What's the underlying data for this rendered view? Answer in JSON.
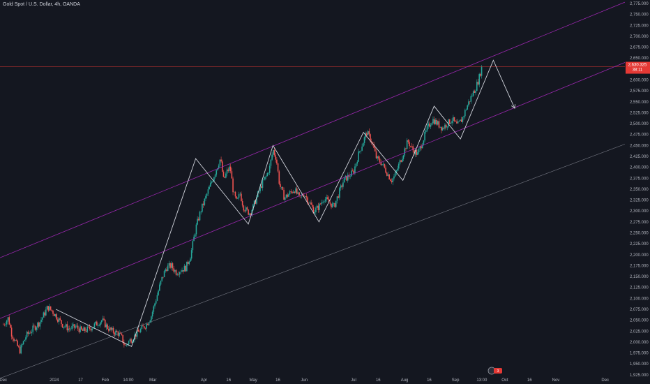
{
  "header": {
    "symbol_title": "Gold Spot / U.S. Dollar, 4h, OANDA"
  },
  "colors": {
    "background": "#141720",
    "up_candle": "#26a69a",
    "down_candle": "#ef5350",
    "channel_line": "#9c27b0",
    "lower_line": "#787b86",
    "zigzag": "#d1d4dc",
    "price_line": "#e53935",
    "price_tag": "#e53935"
  },
  "price_tag": {
    "price": "2,630.325",
    "countdown": "38:11",
    "value": 2630.3
  },
  "events_badge": {
    "count": "3"
  },
  "chart_data": {
    "type": "candlestick",
    "title": "Gold Spot / U.S. Dollar, 4h, OANDA",
    "xlabel": "",
    "ylabel": "",
    "ylim": [
      1912,
      2783
    ],
    "y_ticks": [
      "1,925.000",
      "1,950.000",
      "1,975.000",
      "2,000.000",
      "2,025.000",
      "2,050.000",
      "2,075.000",
      "2,100.000",
      "2,125.000",
      "2,150.000",
      "2,175.000",
      "2,200.000",
      "2,225.000",
      "2,250.000",
      "2,275.000",
      "2,300.000",
      "2,325.000",
      "2,350.000",
      "2,375.000",
      "2,400.000",
      "2,425.000",
      "2,450.000",
      "2,475.000",
      "2,500.000",
      "2,525.000",
      "2,550.000",
      "2,575.000",
      "2,600.000",
      "2,625.000",
      "2,650.000",
      "2,675.000",
      "2,700.000",
      "2,725.000",
      "2,750.000",
      "2,775.000"
    ],
    "y_tick_values": [
      1925,
      1950,
      1975,
      2000,
      2025,
      2050,
      2075,
      2100,
      2125,
      2150,
      2175,
      2200,
      2225,
      2250,
      2275,
      2300,
      2325,
      2350,
      2375,
      2400,
      2425,
      2450,
      2475,
      2500,
      2525,
      2550,
      2575,
      2600,
      2625,
      2650,
      2675,
      2700,
      2725,
      2750,
      2775
    ],
    "x_range_days": [
      -2,
      378
    ],
    "x_ticks": [
      {
        "label": "Dec",
        "day": 0
      },
      {
        "label": "2024",
        "day": 31
      },
      {
        "label": "17",
        "day": 47
      },
      {
        "label": "Feb",
        "day": 62
      },
      {
        "label": "14:00",
        "day": 76
      },
      {
        "label": "Mar",
        "day": 91
      },
      {
        "label": "Apr",
        "day": 122
      },
      {
        "label": "16",
        "day": 137
      },
      {
        "label": "May",
        "day": 152
      },
      {
        "label": "16",
        "day": 167
      },
      {
        "label": "Jun",
        "day": 183
      },
      {
        "label": "Jul",
        "day": 213
      },
      {
        "label": "16",
        "day": 228
      },
      {
        "label": "Aug",
        "day": 244
      },
      {
        "label": "16",
        "day": 259
      },
      {
        "label": "Sep",
        "day": 275
      },
      {
        "label": "13:00",
        "day": 291
      },
      {
        "label": "Oct",
        "day": 305
      },
      {
        "label": "16",
        "day": 320
      },
      {
        "label": "Nov",
        "day": 336
      },
      {
        "label": "Dec",
        "day": 366
      }
    ],
    "price_path": [
      [
        0,
        2040
      ],
      [
        3,
        2055
      ],
      [
        5,
        2020
      ],
      [
        8,
        1995
      ],
      [
        10,
        1980
      ],
      [
        14,
        2015
      ],
      [
        18,
        2030
      ],
      [
        22,
        2045
      ],
      [
        25,
        2065
      ],
      [
        27,
        2080
      ],
      [
        30,
        2070
      ],
      [
        33,
        2055
      ],
      [
        36,
        2040
      ],
      [
        40,
        2030
      ],
      [
        44,
        2035
      ],
      [
        48,
        2025
      ],
      [
        52,
        2030
      ],
      [
        56,
        2040
      ],
      [
        60,
        2050
      ],
      [
        63,
        2035
      ],
      [
        66,
        2025
      ],
      [
        70,
        2020
      ],
      [
        72,
        2010
      ],
      [
        74,
        1990
      ],
      [
        76,
        2000
      ],
      [
        80,
        2015
      ],
      [
        84,
        2030
      ],
      [
        87,
        2040
      ],
      [
        90,
        2060
      ],
      [
        93,
        2100
      ],
      [
        96,
        2140
      ],
      [
        99,
        2170
      ],
      [
        102,
        2175
      ],
      [
        105,
        2160
      ],
      [
        108,
        2165
      ],
      [
        111,
        2170
      ],
      [
        114,
        2200
      ],
      [
        117,
        2260
      ],
      [
        120,
        2300
      ],
      [
        123,
        2330
      ],
      [
        126,
        2360
      ],
      [
        128,
        2380
      ],
      [
        130,
        2400
      ],
      [
        132,
        2420
      ],
      [
        134,
        2370
      ],
      [
        136,
        2390
      ],
      [
        138,
        2400
      ],
      [
        140,
        2340
      ],
      [
        142,
        2320
      ],
      [
        144,
        2340
      ],
      [
        146,
        2310
      ],
      [
        148,
        2300
      ],
      [
        150,
        2295
      ],
      [
        152,
        2310
      ],
      [
        154,
        2330
      ],
      [
        157,
        2360
      ],
      [
        160,
        2380
      ],
      [
        162,
        2400
      ],
      [
        164,
        2440
      ],
      [
        166,
        2420
      ],
      [
        168,
        2360
      ],
      [
        171,
        2330
      ],
      [
        174,
        2340
      ],
      [
        177,
        2350
      ],
      [
        180,
        2330
      ],
      [
        183,
        2340
      ],
      [
        186,
        2320
      ],
      [
        189,
        2300
      ],
      [
        192,
        2310
      ],
      [
        195,
        2330
      ],
      [
        198,
        2320
      ],
      [
        201,
        2310
      ],
      [
        204,
        2340
      ],
      [
        207,
        2370
      ],
      [
        210,
        2380
      ],
      [
        213,
        2390
      ],
      [
        216,
        2430
      ],
      [
        219,
        2460
      ],
      [
        221,
        2480
      ],
      [
        224,
        2460
      ],
      [
        227,
        2420
      ],
      [
        230,
        2410
      ],
      [
        233,
        2390
      ],
      [
        236,
        2370
      ],
      [
        238,
        2380
      ],
      [
        241,
        2410
      ],
      [
        244,
        2440
      ],
      [
        246,
        2460
      ],
      [
        249,
        2440
      ],
      [
        252,
        2430
      ],
      [
        255,
        2460
      ],
      [
        258,
        2490
      ],
      [
        261,
        2510
      ],
      [
        264,
        2500
      ],
      [
        267,
        2490
      ],
      [
        270,
        2500
      ],
      [
        273,
        2510
      ],
      [
        276,
        2495
      ],
      [
        279,
        2510
      ],
      [
        282,
        2540
      ],
      [
        285,
        2565
      ],
      [
        287,
        2580
      ],
      [
        289,
        2600
      ],
      [
        291,
        2630
      ]
    ],
    "zigzag": [
      [
        32,
        2075
      ],
      [
        78,
        1990
      ],
      [
        117,
        2420
      ],
      [
        149,
        2270
      ],
      [
        164,
        2450
      ],
      [
        192,
        2275
      ],
      [
        219,
        2480
      ],
      [
        243,
        2370
      ],
      [
        262,
        2540
      ],
      [
        278,
        2465
      ],
      [
        298,
        2645
      ],
      [
        311,
        2535
      ]
    ],
    "channel_upper": [
      [
        -2,
        2193
      ],
      [
        378,
        2778
      ]
    ],
    "channel_mid": [
      [
        -2,
        2054
      ],
      [
        378,
        2640
      ]
    ],
    "channel_lower": [
      [
        -2,
        1917
      ],
      [
        378,
        2453
      ]
    ],
    "horizontal_price_line": 2630.3
  }
}
